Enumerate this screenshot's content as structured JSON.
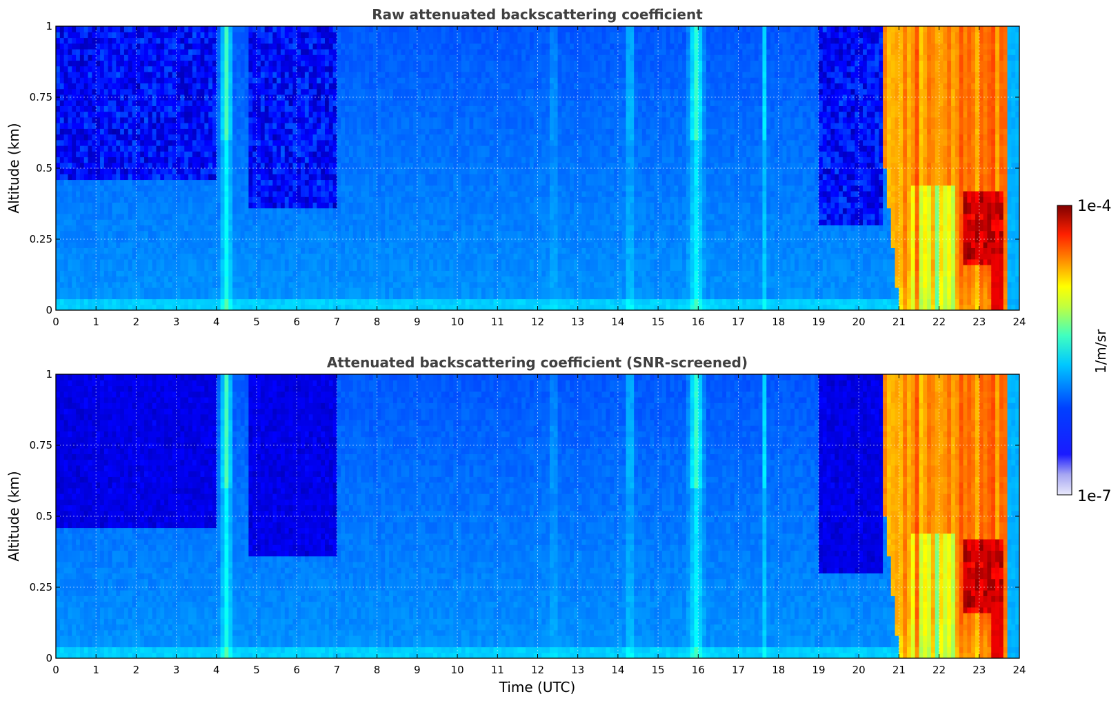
{
  "chart_data": [
    {
      "type": "heatmap",
      "title": "Raw attenuated backscattering coefficient",
      "xlabel": "",
      "ylabel": "Altitude (km)",
      "xlim": [
        0,
        24
      ],
      "ylim": [
        0,
        1
      ],
      "x_ticks": [
        "0",
        "1",
        "2",
        "3",
        "4",
        "5",
        "6",
        "7",
        "8",
        "9",
        "10",
        "11",
        "12",
        "13",
        "14",
        "15",
        "16",
        "17",
        "18",
        "19",
        "20",
        "21",
        "22",
        "23",
        "24"
      ],
      "y_ticks": [
        "0",
        "0.25",
        "0.5",
        "0.75",
        "1"
      ],
      "grid": true,
      "colorscale": "jet (log)",
      "features": [
        {
          "time_utc": [
            0,
            4
          ],
          "altitude_km": [
            0,
            1
          ],
          "description": "low signal, noisy aloft",
          "level": "low"
        },
        {
          "time_utc": [
            4,
            4.5
          ],
          "altitude_km": [
            0,
            1
          ],
          "description": "vertical stripe",
          "level": "medium"
        },
        {
          "time_utc": [
            15.8,
            16.2
          ],
          "altitude_km": [
            0.7,
            1
          ],
          "description": "stripe",
          "level": "medium-high"
        },
        {
          "time_utc": [
            20.4,
            23.7
          ],
          "altitude_km": [
            0,
            1
          ],
          "description": "fog / low cloud",
          "level": "high"
        },
        {
          "time_utc": [
            22.6,
            23.6
          ],
          "altitude_km": [
            0.2,
            0.4
          ],
          "description": "strongest backscatter",
          "level": "max"
        }
      ]
    },
    {
      "type": "heatmap",
      "title": "Attenuated backscattering coefficient (SNR-screened)",
      "xlabel": "Time (UTC)",
      "ylabel": "Altitude (km)",
      "xlim": [
        0,
        24
      ],
      "ylim": [
        0,
        1
      ],
      "x_ticks": [
        "0",
        "1",
        "2",
        "3",
        "4",
        "5",
        "6",
        "7",
        "8",
        "9",
        "10",
        "11",
        "12",
        "13",
        "14",
        "15",
        "16",
        "17",
        "18",
        "19",
        "20",
        "21",
        "22",
        "23",
        "24"
      ],
      "y_ticks": [
        "0",
        "0.25",
        "0.5",
        "0.75",
        "1"
      ],
      "grid": true,
      "colorscale": "jet (log)",
      "features": [
        {
          "time_utc": [
            0,
            4
          ],
          "altitude_km": [
            0.4,
            1
          ],
          "description": "screened, low values",
          "level": "low"
        },
        {
          "time_utc": [
            20.4,
            23.7
          ],
          "altitude_km": [
            0,
            1
          ],
          "description": "fog / low cloud",
          "level": "high"
        }
      ]
    }
  ],
  "colorbar": {
    "label": "1/m/sr",
    "max_label": "1e-4",
    "min_label": "1e-7",
    "scale": "log",
    "range": [
      1e-07,
      0.0001
    ]
  }
}
